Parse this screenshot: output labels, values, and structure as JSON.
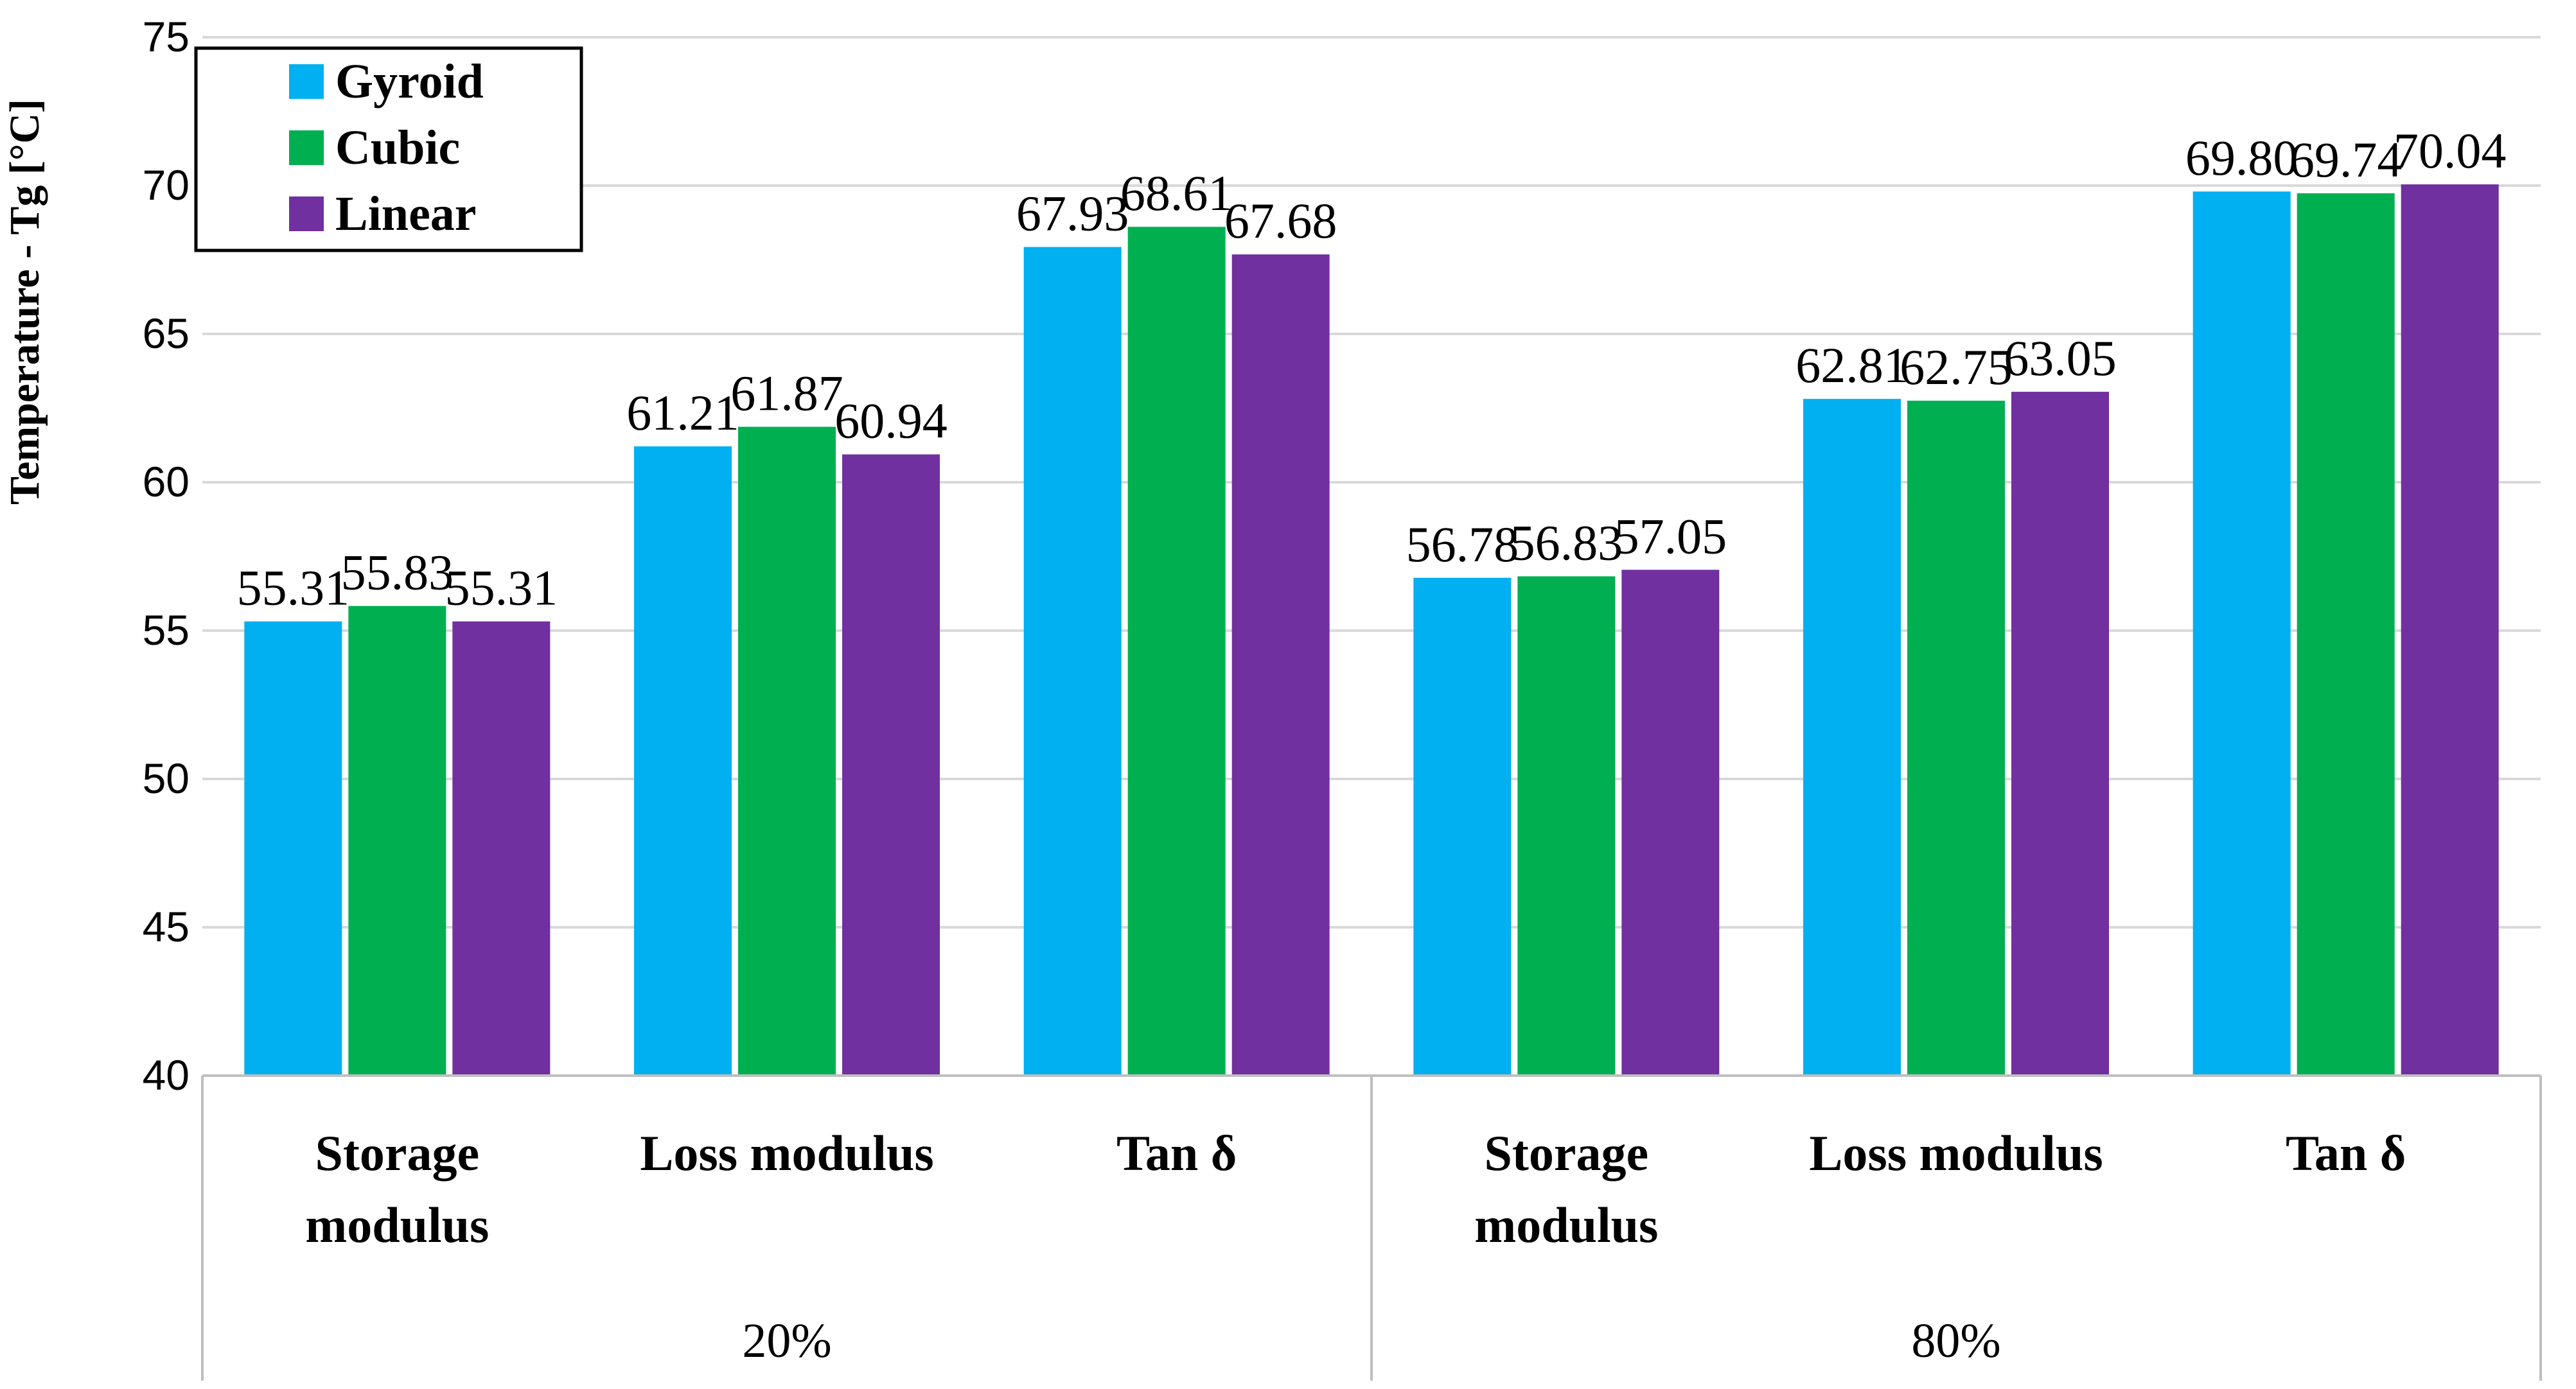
{
  "chart_data": {
    "type": "bar",
    "title": "",
    "ylabel": "Temperature - Tg [°C]",
    "xlabel": "",
    "ylim": [
      40,
      75
    ],
    "yticks": [
      40,
      45,
      50,
      55,
      60,
      65,
      70,
      75
    ],
    "grid": true,
    "legend_position": "top-left",
    "groups": [
      {
        "label": "20%",
        "categories": [
          "Storage modulus",
          "Loss modulus",
          "Tan δ"
        ]
      },
      {
        "label": "80%",
        "categories": [
          "Storage modulus",
          "Loss modulus",
          "Tan δ"
        ]
      }
    ],
    "categories": [
      "Storage modulus (20%)",
      "Loss modulus (20%)",
      "Tan δ (20%)",
      "Storage modulus (80%)",
      "Loss modulus (80%)",
      "Tan δ (80%)"
    ],
    "category_display": [
      [
        "Storage",
        "modulus"
      ],
      [
        "Loss modulus"
      ],
      [
        "Tan δ"
      ],
      [
        "Storage",
        "modulus"
      ],
      [
        "Loss modulus"
      ],
      [
        "Tan δ"
      ]
    ],
    "series": [
      {
        "name": "Gyroid",
        "color": "#00B0F0",
        "values": [
          55.31,
          61.21,
          67.93,
          56.78,
          62.81,
          69.8
        ],
        "labels": [
          "55.31",
          "61.21",
          "67.93",
          "56.78",
          "62.81",
          "69.80"
        ]
      },
      {
        "name": "Cubic",
        "color": "#00B050",
        "values": [
          55.83,
          61.87,
          68.61,
          56.83,
          62.75,
          69.74
        ],
        "labels": [
          "55.83",
          "61.87",
          "68.61",
          "56.83",
          "62.75",
          "69.74"
        ]
      },
      {
        "name": "Linear",
        "color": "#7030A0",
        "values": [
          55.31,
          60.94,
          67.68,
          57.05,
          63.05,
          70.04
        ],
        "labels": [
          "55.31",
          "60.94",
          "67.68",
          "57.05",
          "63.05",
          "70.04"
        ]
      }
    ]
  }
}
